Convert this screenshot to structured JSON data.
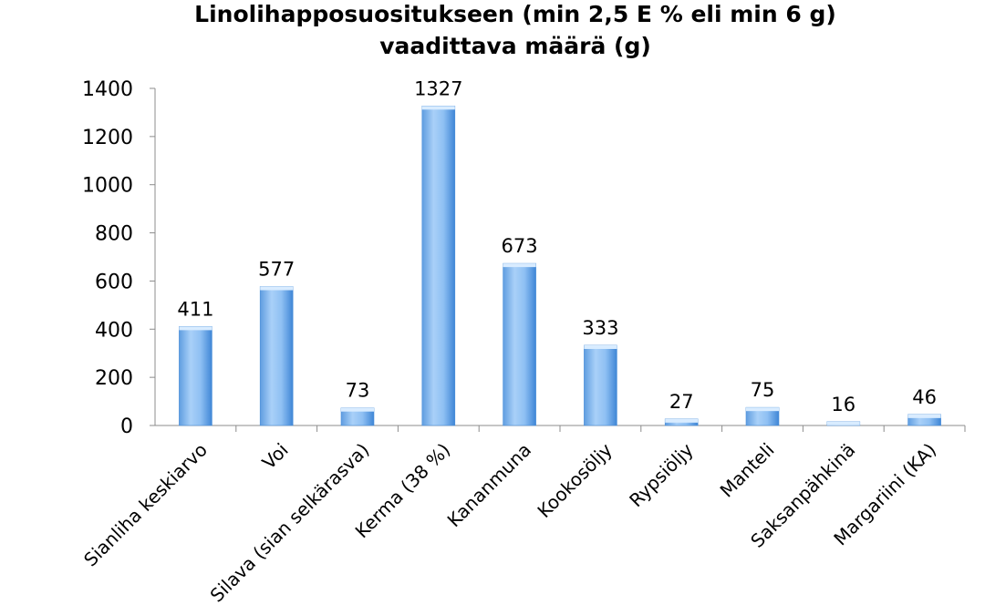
{
  "chart_data": {
    "type": "bar",
    "title_lines": [
      "Linolihapposuositukseen (min 2,5 E % eli min 6 g)",
      "vaadittava määrä (g)"
    ],
    "xlabel": "",
    "ylabel": "",
    "categories": [
      "Sianliha keskiarvo",
      "Voi",
      "Silava (sian selkärasva)",
      "Kerma (38 %)",
      "Kananmuna",
      "Kookosöljy",
      "Rypsiöljy",
      "Manteli",
      "Saksanpähkinä",
      "Margariini (KA)"
    ],
    "values": [
      411,
      577,
      73,
      1327,
      673,
      333,
      27,
      75,
      16,
      46
    ],
    "data_labels": [
      "411",
      "577",
      "73",
      "1327",
      "673",
      "333",
      "27",
      "75",
      "16",
      "46"
    ],
    "ylim": [
      0,
      1400
    ],
    "yticks": [
      0,
      200,
      400,
      600,
      800,
      1000,
      1200,
      1400
    ],
    "grid": false,
    "legend": "none",
    "colors": {
      "bar_light": "#b5d7fb",
      "bar_mid": "#7fb6ee",
      "bar_dark": "#3d86d8",
      "axis": "#8c8c8c"
    }
  }
}
